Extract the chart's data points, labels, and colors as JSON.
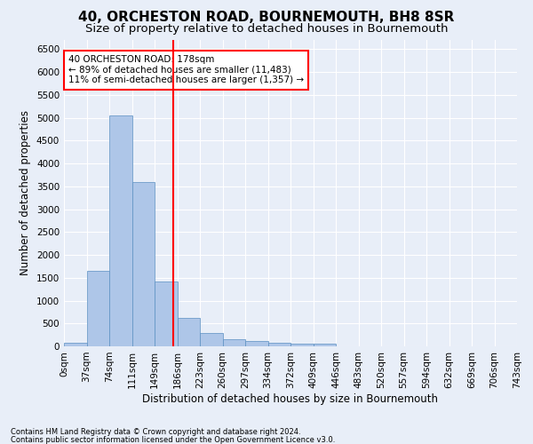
{
  "title": "40, ORCHESTON ROAD, BOURNEMOUTH, BH8 8SR",
  "subtitle": "Size of property relative to detached houses in Bournemouth",
  "xlabel": "Distribution of detached houses by size in Bournemouth",
  "ylabel": "Number of detached properties",
  "bar_values": [
    75,
    1650,
    5050,
    3600,
    1420,
    620,
    300,
    150,
    110,
    80,
    55,
    55,
    0,
    0,
    0,
    0,
    0,
    0,
    0,
    0
  ],
  "x_labels": [
    "0sqm",
    "37sqm",
    "74sqm",
    "111sqm",
    "149sqm",
    "186sqm",
    "223sqm",
    "260sqm",
    "297sqm",
    "334sqm",
    "372sqm",
    "409sqm",
    "446sqm",
    "483sqm",
    "520sqm",
    "557sqm",
    "594sqm",
    "632sqm",
    "669sqm",
    "706sqm",
    "743sqm"
  ],
  "bar_color": "#aec6e8",
  "bar_edge_color": "#5a8fc2",
  "vline_x": 4.81,
  "vline_color": "red",
  "annotation_title": "40 ORCHESTON ROAD: 178sqm",
  "annotation_line1": "← 89% of detached houses are smaller (11,483)",
  "annotation_line2": "11% of semi-detached houses are larger (1,357) →",
  "annotation_box_color": "red",
  "ylim": [
    0,
    6700
  ],
  "yticks": [
    0,
    500,
    1000,
    1500,
    2000,
    2500,
    3000,
    3500,
    4000,
    4500,
    5000,
    5500,
    6000,
    6500
  ],
  "footnote1": "Contains HM Land Registry data © Crown copyright and database right 2024.",
  "footnote2": "Contains public sector information licensed under the Open Government Licence v3.0.",
  "bg_color": "#e8eef8",
  "grid_color": "#ffffff",
  "title_fontsize": 11,
  "subtitle_fontsize": 9.5,
  "axis_label_fontsize": 8.5,
  "tick_fontsize": 7.5
}
